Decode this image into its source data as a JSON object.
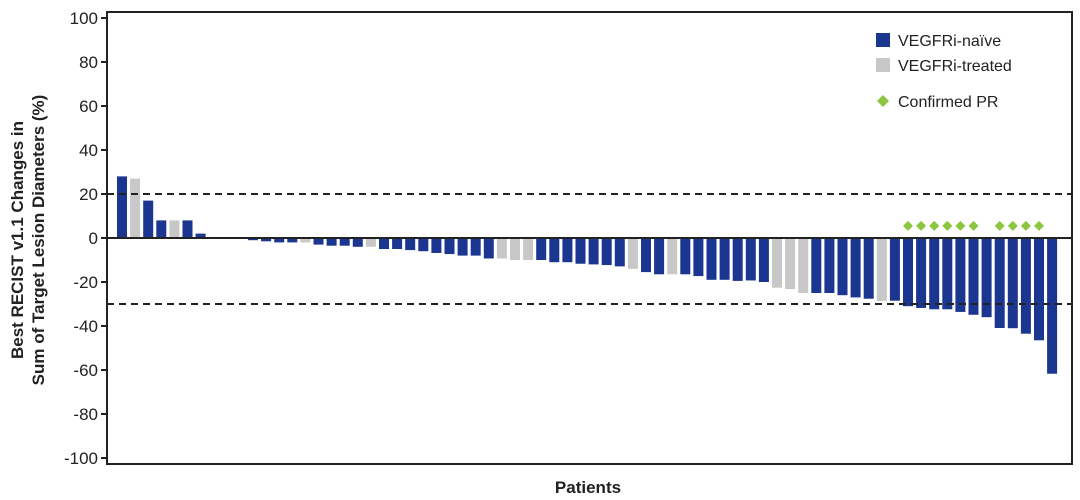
{
  "chart_data": {
    "type": "bar",
    "xlabel": "Patients",
    "ylabel_lines": [
      "Best RECIST v1.1 Changes in",
      "Sum of Target Lesion Diameters (%)"
    ],
    "ylim": [
      -100,
      100
    ],
    "yticks": [
      100,
      80,
      60,
      40,
      20,
      0,
      -20,
      -40,
      -60,
      -80,
      -100
    ],
    "reference_lines": [
      20,
      -30
    ],
    "grid": false,
    "legend_position": "top-right",
    "colors": {
      "VEGFRi-naïve": "#1b3690",
      "VEGFRi-treated": "#c8c8c8",
      "Confirmed PR": "#8cc63f"
    },
    "legend": [
      {
        "label": "VEGFRi-naïve",
        "marker": "square",
        "color": "#1b3690"
      },
      {
        "label": "VEGFRi-treated",
        "marker": "square",
        "color": "#c8c8c8"
      },
      {
        "label": "Confirmed PR",
        "marker": "diamond",
        "color": "#8cc63f"
      }
    ],
    "values": [
      28,
      27,
      17,
      8,
      8,
      8,
      2,
      0,
      0,
      0,
      -1,
      -1.5,
      -2,
      -2,
      -2,
      -3,
      -3.5,
      -3.5,
      -4,
      -4,
      -5,
      -5,
      -5.5,
      -6,
      -6.8,
      -7.3,
      -8,
      -8,
      -9.3,
      -9.3,
      -10,
      -10,
      -10,
      -11,
      -11,
      -11.7,
      -12,
      -12.3,
      -12.9,
      -14,
      -15.5,
      -16.5,
      -16.5,
      -16.5,
      -17.3,
      -19,
      -19,
      -19.5,
      -19.3,
      -20,
      -22.6,
      -23.2,
      -25,
      -25,
      -25,
      -26,
      -27,
      -27.6,
      -28.6,
      -28.5,
      -31,
      -31.8,
      -32.4,
      -32.4,
      -33.6,
      -34.9,
      -36,
      -40.9,
      -41,
      -43.5,
      -46.5,
      -61.7
    ],
    "group": [
      "naive",
      "treated",
      "naive",
      "naive",
      "treated",
      "naive",
      "naive",
      "naive",
      "naive",
      "naive",
      "naive",
      "naive",
      "naive",
      "naive",
      "treated",
      "naive",
      "naive",
      "naive",
      "naive",
      "treated",
      "naive",
      "naive",
      "naive",
      "naive",
      "naive",
      "naive",
      "naive",
      "naive",
      "naive",
      "treated",
      "treated",
      "treated",
      "naive",
      "naive",
      "naive",
      "naive",
      "naive",
      "naive",
      "naive",
      "treated",
      "naive",
      "naive",
      "treated",
      "naive",
      "naive",
      "naive",
      "naive",
      "naive",
      "naive",
      "naive",
      "treated",
      "treated",
      "treated",
      "naive",
      "naive",
      "naive",
      "naive",
      "naive",
      "treated",
      "naive",
      "naive",
      "naive",
      "naive",
      "naive",
      "naive",
      "naive",
      "naive",
      "naive",
      "naive",
      "naive",
      "naive",
      "naive"
    ],
    "confirmed_pr": [
      false,
      false,
      false,
      false,
      false,
      false,
      false,
      false,
      false,
      false,
      false,
      false,
      false,
      false,
      false,
      false,
      false,
      false,
      false,
      false,
      false,
      false,
      false,
      false,
      false,
      false,
      false,
      false,
      false,
      false,
      false,
      false,
      false,
      false,
      false,
      false,
      false,
      false,
      false,
      false,
      false,
      false,
      false,
      false,
      false,
      false,
      false,
      false,
      false,
      false,
      false,
      false,
      false,
      false,
      false,
      false,
      false,
      false,
      false,
      false,
      true,
      true,
      true,
      true,
      true,
      true,
      false,
      true,
      true,
      true,
      true,
      false
    ]
  }
}
